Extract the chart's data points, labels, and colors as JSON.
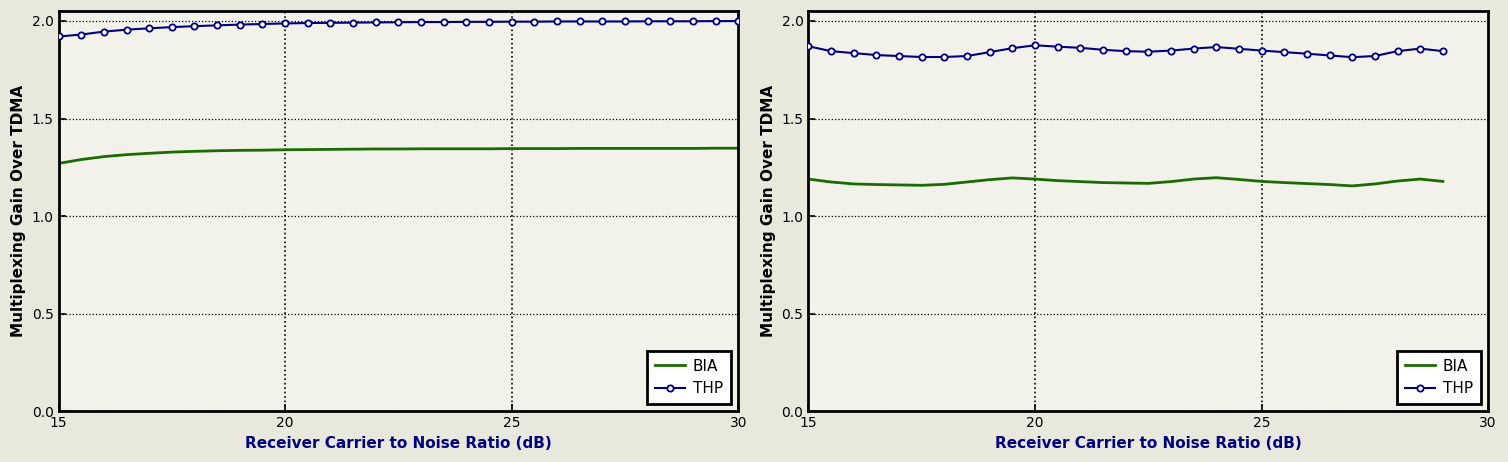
{
  "left_thp_x": [
    15,
    15.5,
    16,
    16.5,
    17,
    17.5,
    18,
    18.5,
    19,
    19.5,
    20,
    20.5,
    21,
    21.5,
    22,
    22.5,
    23,
    23.5,
    24,
    24.5,
    25,
    25.5,
    26,
    26.5,
    27,
    27.5,
    28,
    28.5,
    29,
    29.5,
    30
  ],
  "left_thp_y": [
    1.92,
    1.93,
    1.945,
    1.955,
    1.962,
    1.968,
    1.973,
    1.977,
    1.981,
    1.984,
    1.987,
    1.989,
    1.99,
    1.991,
    1.992,
    1.993,
    1.994,
    1.994,
    1.995,
    1.995,
    1.996,
    1.996,
    1.997,
    1.997,
    1.997,
    1.997,
    1.998,
    1.998,
    1.998,
    1.999,
    1.999
  ],
  "left_bia_x": [
    15,
    15.5,
    16,
    16.5,
    17,
    17.5,
    18,
    18.5,
    19,
    19.5,
    20,
    20.5,
    21,
    21.5,
    22,
    22.5,
    23,
    23.5,
    24,
    24.5,
    25,
    25.5,
    26,
    26.5,
    27,
    27.5,
    28,
    28.5,
    29,
    29.5,
    30
  ],
  "left_bia_y": [
    1.27,
    1.29,
    1.305,
    1.315,
    1.322,
    1.328,
    1.332,
    1.335,
    1.337,
    1.338,
    1.34,
    1.341,
    1.342,
    1.343,
    1.344,
    1.344,
    1.345,
    1.345,
    1.345,
    1.345,
    1.346,
    1.346,
    1.346,
    1.347,
    1.347,
    1.347,
    1.347,
    1.347,
    1.347,
    1.348,
    1.348
  ],
  "right_thp_x": [
    15,
    15.5,
    16,
    16.5,
    17,
    17.5,
    18,
    18.5,
    19,
    19.5,
    20,
    20.5,
    21,
    21.5,
    22,
    22.5,
    23,
    23.5,
    24,
    24.5,
    25,
    25.5,
    26,
    26.5,
    27,
    27.5,
    28,
    28.5,
    29
  ],
  "right_thp_y": [
    1.87,
    1.845,
    1.835,
    1.825,
    1.82,
    1.815,
    1.815,
    1.82,
    1.84,
    1.86,
    1.875,
    1.868,
    1.862,
    1.852,
    1.845,
    1.842,
    1.848,
    1.858,
    1.866,
    1.857,
    1.848,
    1.84,
    1.832,
    1.823,
    1.814,
    1.82,
    1.845,
    1.858,
    1.845
  ],
  "right_bia_x": [
    15,
    15.5,
    16,
    16.5,
    17,
    17.5,
    18,
    18.5,
    19,
    19.5,
    20,
    20.5,
    21,
    21.5,
    22,
    22.5,
    23,
    23.5,
    24,
    24.5,
    25,
    25.5,
    26,
    26.5,
    27,
    27.5,
    28,
    28.5,
    29
  ],
  "right_bia_y": [
    1.19,
    1.175,
    1.165,
    1.162,
    1.16,
    1.158,
    1.163,
    1.175,
    1.187,
    1.196,
    1.19,
    1.182,
    1.177,
    1.172,
    1.17,
    1.168,
    1.177,
    1.19,
    1.197,
    1.188,
    1.178,
    1.172,
    1.167,
    1.162,
    1.155,
    1.165,
    1.18,
    1.19,
    1.178
  ],
  "thp_color": "#000080",
  "bia_color": "#1a6b00",
  "xlabel": "Receiver Carrier to Noise Ratio (dB)",
  "ylabel": "Multiplexing Gain Over TDMA",
  "xlabel_color": "#000080",
  "xlim": [
    15,
    30
  ],
  "ylim": [
    0,
    2.05
  ],
  "yticks": [
    0,
    0.5,
    1.0,
    1.5,
    2.0
  ],
  "xticks": [
    15,
    20,
    25,
    30
  ],
  "vlines": [
    20,
    25
  ],
  "bg_color": "#f0f0e8",
  "axes_bg_color": "#f5f5e8",
  "figure_bg": "#d8d8cc"
}
